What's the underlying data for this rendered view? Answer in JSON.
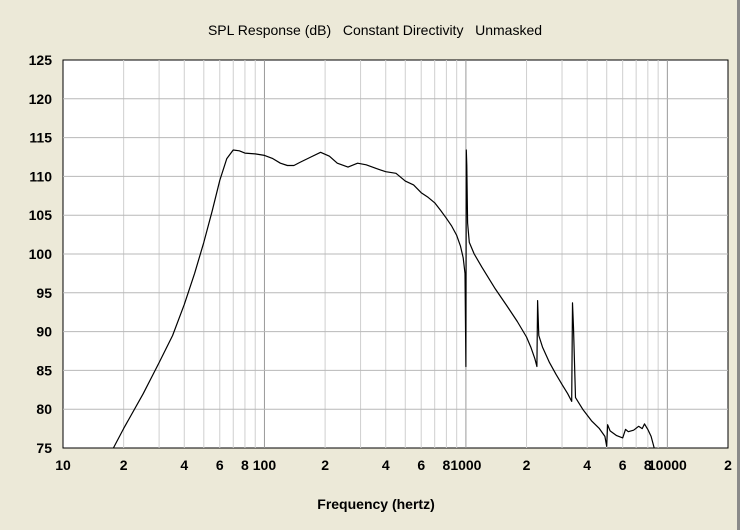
{
  "chart_data": {
    "type": "line",
    "title": "SPL Response (dB)   Constant Directivity   Unmasked",
    "xlabel": "Frequency (hertz)",
    "ylabel": "",
    "x_scale": "log",
    "xlim": [
      10,
      20000
    ],
    "ylim": [
      75,
      125
    ],
    "y_ticks": [
      75,
      80,
      85,
      90,
      95,
      100,
      105,
      110,
      115,
      120,
      125
    ],
    "x_tick_labels": [
      {
        "x": 10,
        "label": "10"
      },
      {
        "x": 20,
        "label": "2"
      },
      {
        "x": 40,
        "label": "4"
      },
      {
        "x": 60,
        "label": "6"
      },
      {
        "x": 80,
        "label": "8"
      },
      {
        "x": 100,
        "label": "100"
      },
      {
        "x": 200,
        "label": "2"
      },
      {
        "x": 400,
        "label": "4"
      },
      {
        "x": 600,
        "label": "6"
      },
      {
        "x": 800,
        "label": "8"
      },
      {
        "x": 1000,
        "label": "1000"
      },
      {
        "x": 2000,
        "label": "2"
      },
      {
        "x": 4000,
        "label": "4"
      },
      {
        "x": 6000,
        "label": "6"
      },
      {
        "x": 8000,
        "label": "8"
      },
      {
        "x": 10000,
        "label": "10000"
      },
      {
        "x": 20000,
        "label": "2"
      }
    ],
    "grid": true,
    "series": [
      {
        "color": "#000000",
        "points": [
          [
            17.8,
            75
          ],
          [
            20,
            77.5
          ],
          [
            25,
            82
          ],
          [
            30,
            86
          ],
          [
            35,
            89.5
          ],
          [
            40,
            93.5
          ],
          [
            45,
            97.5
          ],
          [
            50,
            101.5
          ],
          [
            55,
            105.5
          ],
          [
            60,
            109.5
          ],
          [
            65,
            112.3
          ],
          [
            70,
            113.4
          ],
          [
            75,
            113.3
          ],
          [
            80,
            113
          ],
          [
            90,
            112.9
          ],
          [
            100,
            112.7
          ],
          [
            110,
            112.3
          ],
          [
            120,
            111.7
          ],
          [
            130,
            111.4
          ],
          [
            140,
            111.4
          ],
          [
            150,
            111.8
          ],
          [
            170,
            112.5
          ],
          [
            190,
            113.1
          ],
          [
            210,
            112.6
          ],
          [
            230,
            111.7
          ],
          [
            260,
            111.2
          ],
          [
            290,
            111.7
          ],
          [
            320,
            111.5
          ],
          [
            360,
            111
          ],
          [
            400,
            110.6
          ],
          [
            450,
            110.4
          ],
          [
            500,
            109.4
          ],
          [
            550,
            108.9
          ],
          [
            600,
            107.9
          ],
          [
            650,
            107.3
          ],
          [
            700,
            106.6
          ],
          [
            750,
            105.6
          ],
          [
            800,
            104.6
          ],
          [
            850,
            103.6
          ],
          [
            900,
            102.4
          ],
          [
            940,
            101
          ],
          [
            970,
            99.5
          ],
          [
            990,
            97.5
          ],
          [
            1000,
            85.5
          ],
          [
            1005,
            113.4
          ],
          [
            1010,
            111.4
          ],
          [
            1020,
            104
          ],
          [
            1040,
            101.5
          ],
          [
            1100,
            100
          ],
          [
            1200,
            98.3
          ],
          [
            1400,
            95.5
          ],
          [
            1600,
            93.3
          ],
          [
            1800,
            91.3
          ],
          [
            2000,
            89.3
          ],
          [
            2100,
            88
          ],
          [
            2200,
            86.5
          ],
          [
            2250,
            85.5
          ],
          [
            2270,
            94
          ],
          [
            2300,
            89.5
          ],
          [
            2400,
            88
          ],
          [
            2600,
            86
          ],
          [
            2800,
            84.5
          ],
          [
            3000,
            83.2
          ],
          [
            3200,
            82
          ],
          [
            3350,
            81
          ],
          [
            3380,
            93.7
          ],
          [
            3420,
            90.5
          ],
          [
            3500,
            81.5
          ],
          [
            3800,
            80
          ],
          [
            4200,
            78.5
          ],
          [
            4600,
            77.5
          ],
          [
            4900,
            76.5
          ],
          [
            5000,
            75.2
          ],
          [
            5050,
            78
          ],
          [
            5200,
            77.2
          ],
          [
            5600,
            76.6
          ],
          [
            6000,
            76.3
          ],
          [
            6200,
            77.4
          ],
          [
            6400,
            77.1
          ],
          [
            6800,
            77.3
          ],
          [
            7200,
            77.8
          ],
          [
            7500,
            77.5
          ],
          [
            7700,
            78.1
          ],
          [
            8000,
            77.4
          ],
          [
            8300,
            76.5
          ],
          [
            8600,
            75
          ]
        ]
      }
    ]
  }
}
